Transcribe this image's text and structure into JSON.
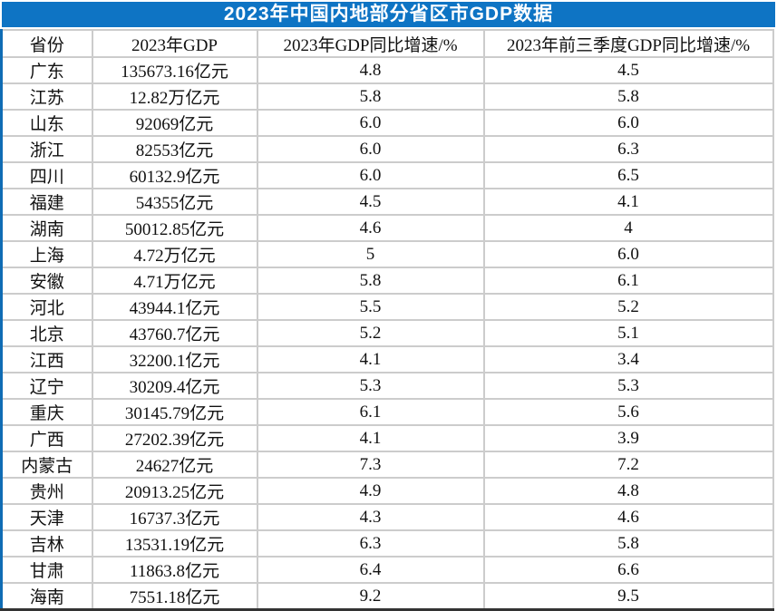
{
  "colors": {
    "title_bar_bg": "#0e74c4",
    "title_text": "#ffffff",
    "grid_line": "#cccccc",
    "outer_left_border": "#0f6cb4",
    "outer_bottom_border": "#333333",
    "body_text": "#111111"
  },
  "chart_data": {
    "type": "table",
    "title": "2023年中国内地部分省区市GDP数据",
    "columns": [
      "省份",
      "2023年GDP",
      "2023年GDP同比增速/%",
      "2023年前三季度GDP同比增速/%"
    ],
    "rows": [
      [
        "广东",
        "135673.16亿元",
        "4.8",
        "4.5"
      ],
      [
        "江苏",
        "12.82万亿元",
        "5.8",
        "5.8"
      ],
      [
        "山东",
        "92069亿元",
        "6.0",
        "6.0"
      ],
      [
        "浙江",
        "82553亿元",
        "6.0",
        "6.3"
      ],
      [
        "四川",
        "60132.9亿元",
        "6.0",
        "6.5"
      ],
      [
        "福建",
        "54355亿元",
        "4.5",
        "4.1"
      ],
      [
        "湖南",
        "50012.85亿元",
        "4.6",
        "4"
      ],
      [
        "上海",
        "4.72万亿元",
        "5",
        "6.0"
      ],
      [
        "安徽",
        "4.71万亿元",
        "5.8",
        "6.1"
      ],
      [
        "河北",
        "43944.1亿元",
        "5.5",
        "5.2"
      ],
      [
        "北京",
        "43760.7亿元",
        "5.2",
        "5.1"
      ],
      [
        "江西",
        "32200.1亿元",
        "4.1",
        "3.4"
      ],
      [
        "辽宁",
        "30209.4亿元",
        "5.3",
        "5.3"
      ],
      [
        "重庆",
        "30145.79亿元",
        "6.1",
        "5.6"
      ],
      [
        "广西",
        "27202.39亿元",
        "4.1",
        "3.9"
      ],
      [
        "内蒙古",
        "24627亿元",
        "7.3",
        "7.2"
      ],
      [
        "贵州",
        "20913.25亿元",
        "4.9",
        "4.8"
      ],
      [
        "天津",
        "16737.3亿元",
        "4.3",
        "4.6"
      ],
      [
        "吉林",
        "13531.19亿元",
        "6.3",
        "5.8"
      ],
      [
        "甘肃",
        "11863.8亿元",
        "6.4",
        "6.6"
      ],
      [
        "海南",
        "7551.18亿元",
        "9.2",
        "9.5"
      ]
    ]
  }
}
